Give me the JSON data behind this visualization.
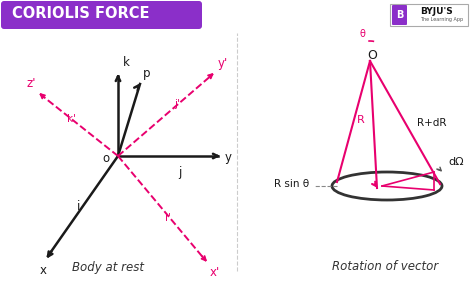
{
  "title": "CORIOLIS FORCE",
  "title_bg": "#8B2FC9",
  "title_color": "#FFFFFF",
  "bg_color": "#FFFFFF",
  "left_label": "Body at rest",
  "right_label": "Rotation of vector",
  "axis_color": "#1a1a1a",
  "dashed_color": "#E8006E",
  "cone_color": "#E8006E",
  "divider_color": "#CCCCCC"
}
